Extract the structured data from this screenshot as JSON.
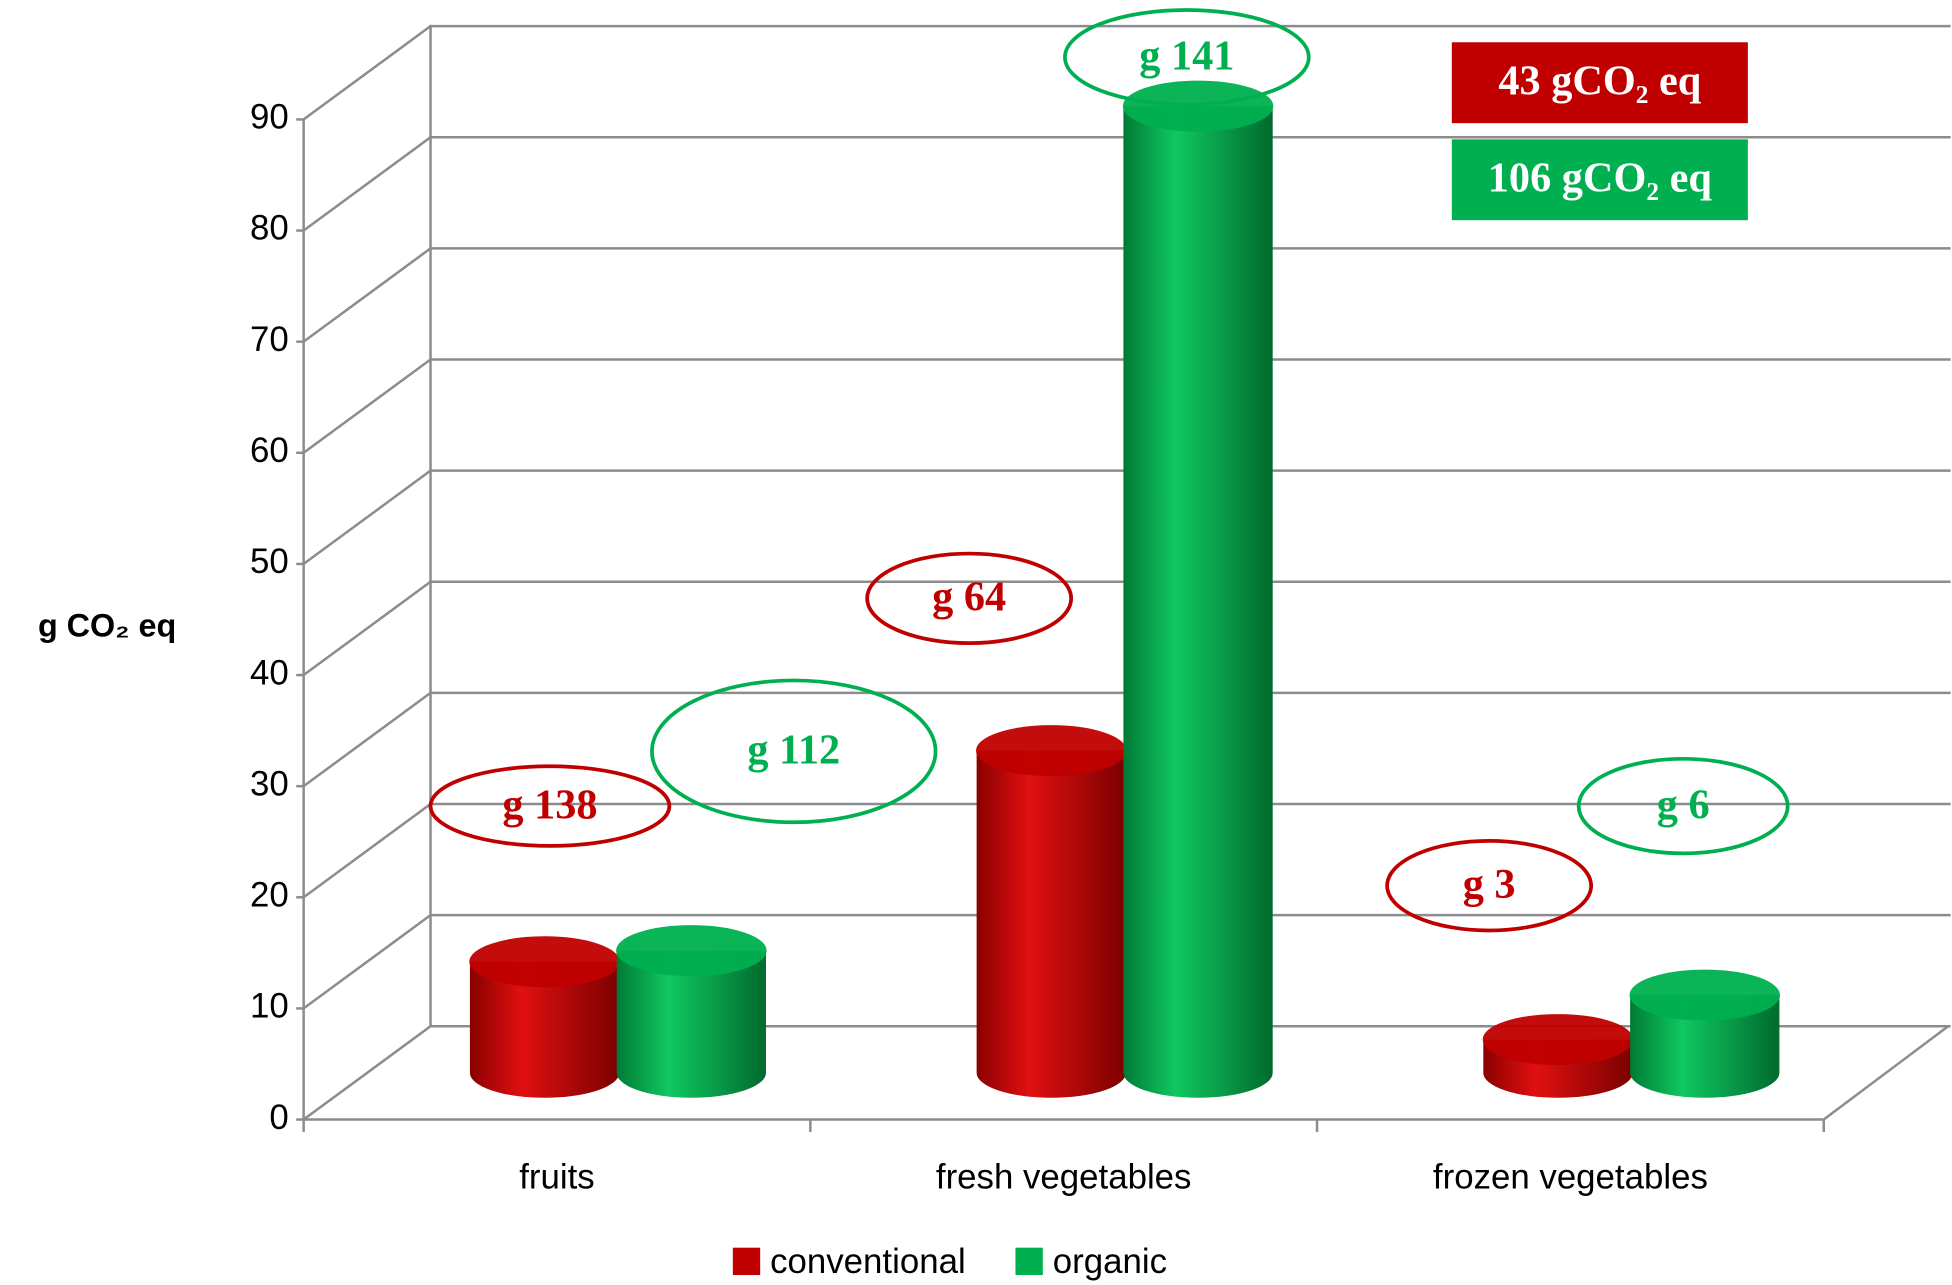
{
  "chart_data": {
    "type": "bar3d",
    "y_label": "g CO₂ eq",
    "categories": [
      "fruits",
      "fresh vegetables",
      "frozen vegetables"
    ],
    "series": [
      {
        "name": "conventional",
        "color": "#c00000",
        "values": [
          10,
          29,
          3
        ]
      },
      {
        "name": "organic",
        "color": "#00b050",
        "values": [
          11,
          87,
          7
        ]
      }
    ],
    "ylim": [
      0,
      90
    ],
    "yticks": [
      0,
      10,
      20,
      30,
      40,
      50,
      60,
      70,
      80,
      90
    ],
    "grid": true,
    "legend": "bottom",
    "annotations": [
      {
        "text": "g 138",
        "color": "#c00000"
      },
      {
        "text": "g 112",
        "color": "#00b050"
      },
      {
        "text": "g 64",
        "color": "#c00000"
      },
      {
        "text": "g 141",
        "color": "#00b050"
      },
      {
        "text": "g 3",
        "color": "#c00000"
      },
      {
        "text": "g 6",
        "color": "#00b050"
      }
    ],
    "totals": [
      {
        "text": "43 gCO₂ eq",
        "color": "#c00000"
      },
      {
        "text": "106 gCO₂ eq",
        "color": "#00b050"
      }
    ]
  }
}
